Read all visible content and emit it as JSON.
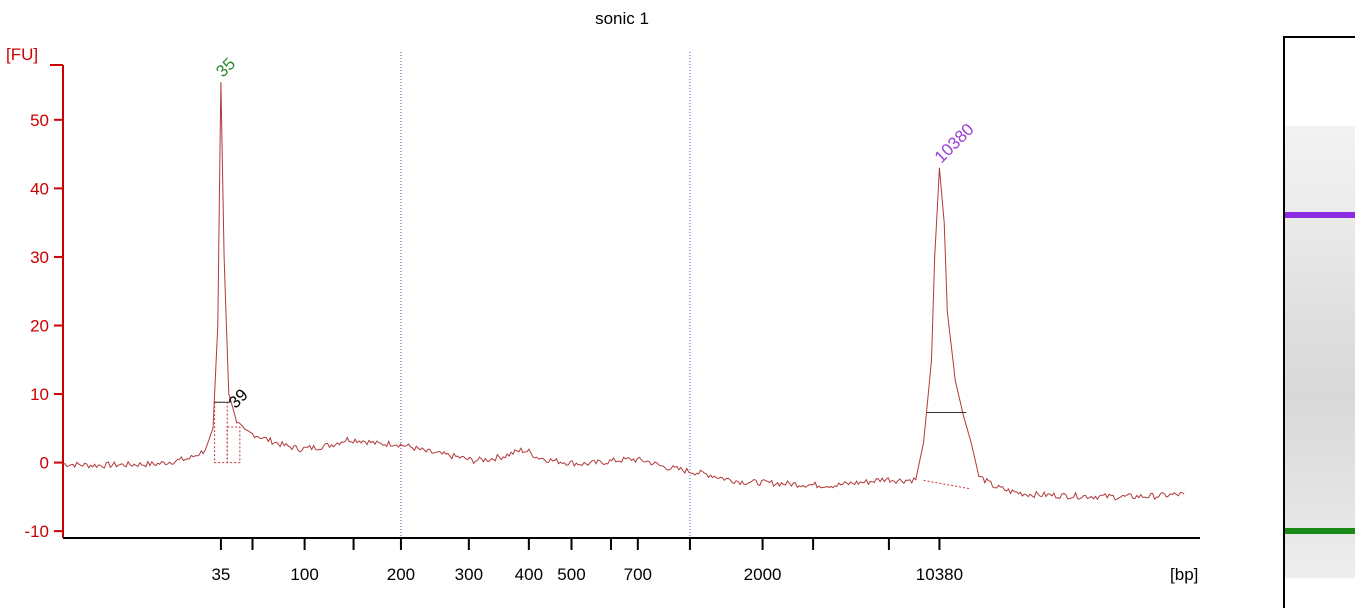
{
  "chart_data": {
    "type": "line",
    "title": "sonic 1",
    "ylabel": "[FU]",
    "xlabel": "[bp]",
    "ylim": [
      -11,
      58
    ],
    "yticks": [
      -10,
      0,
      10,
      20,
      30,
      40,
      50
    ],
    "xticks": [
      {
        "label": "35",
        "t": 39
      },
      {
        "label": "",
        "t": 41
      },
      {
        "label": "100",
        "t": 44.3
      },
      {
        "label": "",
        "t": 47.4
      },
      {
        "label": "200",
        "t": 50.4
      },
      {
        "label": "300",
        "t": 54.7
      },
      {
        "label": "400",
        "t": 58.5
      },
      {
        "label": "500",
        "t": 61.2
      },
      {
        "label": "",
        "t": 63.7
      },
      {
        "label": "700",
        "t": 65.4
      },
      {
        "label": "",
        "t": 68.7
      },
      {
        "label": "2000",
        "t": 73.3
      },
      {
        "label": "",
        "t": 76.5
      },
      {
        "label": "",
        "t": 81.3
      },
      {
        "label": "10380",
        "t": 84.5
      },
      {
        "label": "[bp]",
        "t": 100
      }
    ],
    "xlim_time": [
      29,
      101
    ],
    "x_unit_note": "",
    "series": [
      {
        "name": "",
        "color": "#b03a3a",
        "x": [
          29,
          31,
          33,
          35,
          36,
          37,
          38,
          38.5,
          38.8,
          39,
          39.2,
          39.5,
          40,
          40.5,
          41,
          42,
          43,
          44,
          45,
          46,
          47,
          48,
          49,
          50,
          51,
          52,
          53,
          54,
          55,
          56,
          57,
          58,
          58.5,
          59,
          60,
          61,
          62,
          63,
          64,
          65,
          66,
          67,
          68,
          69,
          70,
          71,
          72,
          73,
          74,
          75,
          76,
          77,
          78,
          79,
          80,
          81,
          82,
          83,
          83.5,
          84,
          84.2,
          84.5,
          84.8,
          85,
          85.5,
          86,
          86.5,
          87,
          88,
          89,
          90,
          92,
          94,
          96,
          98,
          100
        ],
        "y": [
          -0.2,
          -0.4,
          -0.3,
          -0.2,
          0.2,
          0.6,
          1.8,
          5,
          20,
          55.5,
          30,
          10,
          6,
          4.5,
          4.2,
          3.3,
          2.5,
          2.0,
          2.2,
          2.6,
          3.4,
          3.2,
          2.7,
          2.8,
          2.3,
          1.6,
          1.2,
          0.8,
          0.3,
          0.5,
          1.0,
          1.8,
          1.6,
          0.8,
          0.3,
          0.0,
          -0.2,
          0.0,
          0.3,
          0.5,
          0.2,
          -0.6,
          -1.0,
          -1.4,
          -1.8,
          -2.4,
          -2.8,
          -2.9,
          -3.0,
          -3.1,
          -3.2,
          -3.3,
          -3.3,
          -3.0,
          -2.8,
          -2.4,
          -2.6,
          -2.5,
          3,
          15,
          30,
          43,
          35,
          22,
          12,
          7,
          3,
          -2,
          -3.5,
          -4.2,
          -4.6,
          -4.8,
          -4.9,
          -5.0,
          -4.9,
          -4.6
        ]
      }
    ],
    "peaks": [
      {
        "label": "35",
        "t": 39,
        "y": 55.5,
        "color": "#2e8b2e"
      },
      {
        "label": "39",
        "t": 39.8,
        "y": 7.2,
        "color": "#000000"
      },
      {
        "label": "10380",
        "t": 84.5,
        "y": 43,
        "color": "#9b3fd6"
      }
    ],
    "region_lines": [
      {
        "t": 50.4,
        "color": "#7a3fa0"
      },
      {
        "t": 68.7,
        "color": "#3f6fd6"
      }
    ],
    "axis_color": "#cc0000",
    "gel": {
      "bands": [
        {
          "name": "upper-marker",
          "color": "#8a2be2",
          "pos": 0.305
        },
        {
          "name": "lower-marker",
          "color": "#1a8a1a",
          "pos": 0.86
        }
      ]
    }
  }
}
